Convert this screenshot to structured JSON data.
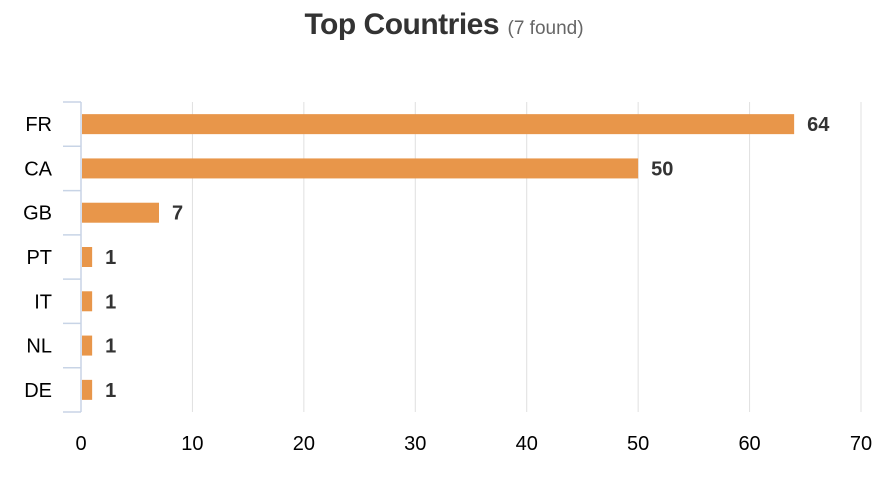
{
  "header": {
    "title": "Top Countries",
    "subtitle": "(7 found)"
  },
  "colors": {
    "bar": "#E8964A",
    "grid": "#E0E0E0",
    "axis": "#C8D4E6"
  },
  "chart_data": {
    "type": "bar",
    "orientation": "horizontal",
    "title": "Top Countries",
    "subtitle": "(7 found)",
    "categories": [
      "FR",
      "CA",
      "GB",
      "PT",
      "IT",
      "NL",
      "DE"
    ],
    "values": [
      64,
      50,
      7,
      1,
      1,
      1,
      1
    ],
    "xlim": [
      0,
      70
    ],
    "xticks": [
      0,
      10,
      20,
      30,
      40,
      50,
      60,
      70
    ],
    "grid": true,
    "data_labels": true,
    "legend": "none"
  }
}
